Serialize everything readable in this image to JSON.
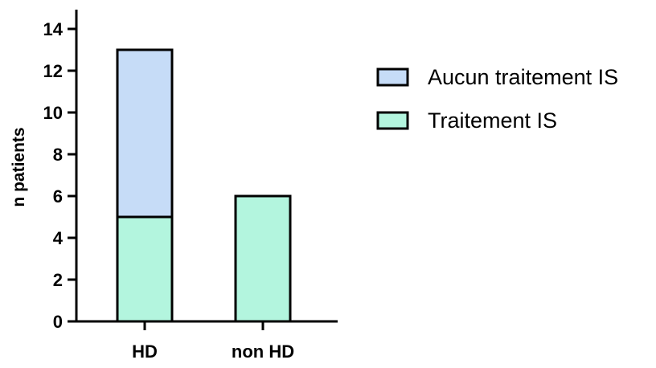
{
  "chart_data": {
    "type": "bar",
    "stacked": true,
    "categories": [
      "HD",
      "non HD"
    ],
    "series": [
      {
        "name": "Traitement IS",
        "values": [
          5,
          6
        ],
        "color": "#b3f5de"
      },
      {
        "name": "Aucun traitement IS",
        "values": [
          8,
          0
        ],
        "color": "#c6dcf7"
      }
    ],
    "ylabel": "n patients",
    "xlabel": "",
    "title": "",
    "ylim": [
      0,
      15
    ],
    "yticks": [
      0,
      2,
      4,
      6,
      8,
      10,
      12,
      14
    ],
    "grid": false,
    "legend": {
      "placement": "right",
      "order": [
        "Aucun traitement IS",
        "Traitement IS"
      ]
    }
  }
}
